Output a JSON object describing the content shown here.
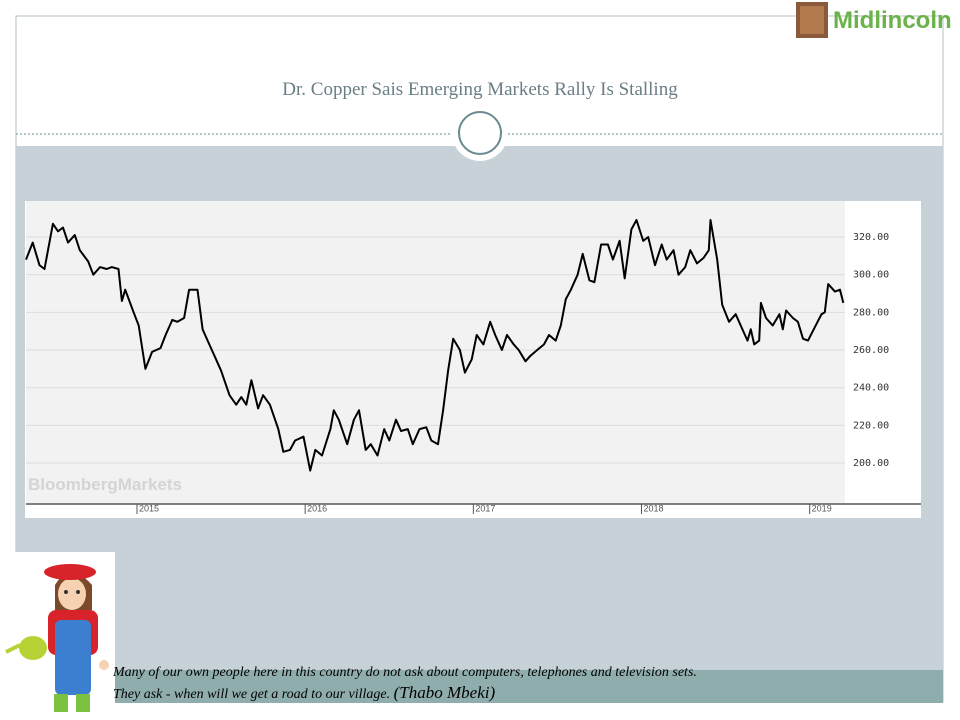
{
  "slide": {
    "title": "Dr. Copper Sais Emerging Markets Rally Is Stalling",
    "logo": "Midlincoln",
    "quote_lines": [
      "Many of our own people here in this country do not ask about computers, telephones and television sets.",
      "They ask - when will we get a road to our village."
    ],
    "quote_author": "(Thabo Mbeki)"
  },
  "chart_data": {
    "type": "line",
    "watermark": "BloombergMarkets",
    "color": "#000000",
    "grid": true,
    "x": [
      2014.34,
      2014.38,
      2014.42,
      2014.45,
      2014.5,
      2014.53,
      2014.56,
      2014.59,
      2014.63,
      2014.66,
      2014.71,
      2014.74,
      2014.78,
      2014.82,
      2014.85,
      2014.89,
      2014.91,
      2014.93,
      2014.98,
      2015.01,
      2015.05,
      2015.09,
      2015.14,
      2015.17,
      2015.21,
      2015.24,
      2015.28,
      2015.31,
      2015.36,
      2015.39,
      2015.43,
      2015.46,
      2015.5,
      2015.55,
      2015.59,
      2015.62,
      2015.65,
      2015.68,
      2015.72,
      2015.75,
      2015.79,
      2015.84,
      2015.87,
      2015.91,
      2015.94,
      2015.99,
      2016.03,
      2016.06,
      2016.1,
      2016.15,
      2016.17,
      2016.2,
      2016.25,
      2016.29,
      2016.32,
      2016.36,
      2016.39,
      2016.43,
      2016.47,
      2016.5,
      2016.54,
      2016.57,
      2016.61,
      2016.64,
      2016.68,
      2016.72,
      2016.75,
      2016.79,
      2016.82,
      2016.85,
      2016.88,
      2016.92,
      2016.95,
      2016.99,
      2017.02,
      2017.06,
      2017.1,
      2017.13,
      2017.17,
      2017.2,
      2017.24,
      2017.27,
      2017.31,
      2017.34,
      2017.38,
      2017.42,
      2017.45,
      2017.49,
      2017.52,
      2017.55,
      2017.58,
      2017.62,
      2017.65,
      2017.69,
      2017.72,
      2017.76,
      2017.8,
      2017.83,
      2017.87,
      2017.9,
      2017.94,
      2017.97,
      2018.01,
      2018.04,
      2018.08,
      2018.12,
      2018.15,
      2018.19,
      2018.22,
      2018.26,
      2018.29,
      2018.33,
      2018.37,
      2018.4,
      2018.41,
      2018.45,
      2018.48,
      2018.52,
      2018.56,
      2018.59,
      2018.63,
      2018.65,
      2018.67,
      2018.7,
      2018.71,
      2018.74,
      2018.78,
      2018.82,
      2018.84,
      2018.86,
      2018.9,
      2018.93,
      2018.96,
      2018.99,
      2019.03,
      2019.07,
      2019.09,
      2019.11,
      2019.15,
      2019.18,
      2019.2
    ],
    "values": [
      308,
      317,
      305,
      303,
      327,
      323,
      325,
      317,
      321,
      313,
      307,
      300,
      304,
      303,
      304,
      303,
      286,
      292,
      280,
      273,
      250,
      259,
      261,
      268,
      276,
      275,
      277,
      292,
      292,
      271,
      263,
      257,
      249,
      236,
      231,
      235,
      231,
      244,
      229,
      236,
      231,
      218,
      206,
      207,
      212,
      214,
      196,
      207,
      204,
      218,
      228,
      223,
      210,
      223,
      228,
      207,
      210,
      204,
      218,
      212,
      223,
      217,
      218,
      210,
      218,
      219,
      212,
      210,
      228,
      249,
      266,
      260,
      248,
      255,
      268,
      263,
      275,
      268,
      260,
      268,
      263,
      260,
      254,
      257,
      260,
      263,
      268,
      265,
      273,
      287,
      292,
      300,
      311,
      297,
      296,
      316,
      316,
      308,
      318,
      298,
      324,
      329,
      318,
      320,
      305,
      316,
      308,
      313,
      300,
      304,
      313,
      306,
      309,
      313,
      329,
      308,
      284,
      275,
      279,
      273,
      265,
      271,
      263,
      265,
      285,
      277,
      273,
      279,
      271,
      281,
      277,
      275,
      266,
      265,
      272,
      279,
      280,
      295,
      291,
      292,
      285
    ],
    "xlim": [
      2014.34,
      2019.21
    ],
    "xticks": [
      2015,
      2016,
      2017,
      2018,
      2019
    ],
    "ylim": [
      178.8,
      339.1
    ],
    "yticks": [
      {
        "value": 200,
        "label": "200.00"
      },
      {
        "value": 220,
        "label": "220.00"
      },
      {
        "value": 240,
        "label": "240.00"
      },
      {
        "value": 260,
        "label": "260.00"
      },
      {
        "value": 280,
        "label": "280.00"
      },
      {
        "value": 300,
        "label": "300.00"
      },
      {
        "value": 320,
        "label": "320.00"
      }
    ]
  }
}
